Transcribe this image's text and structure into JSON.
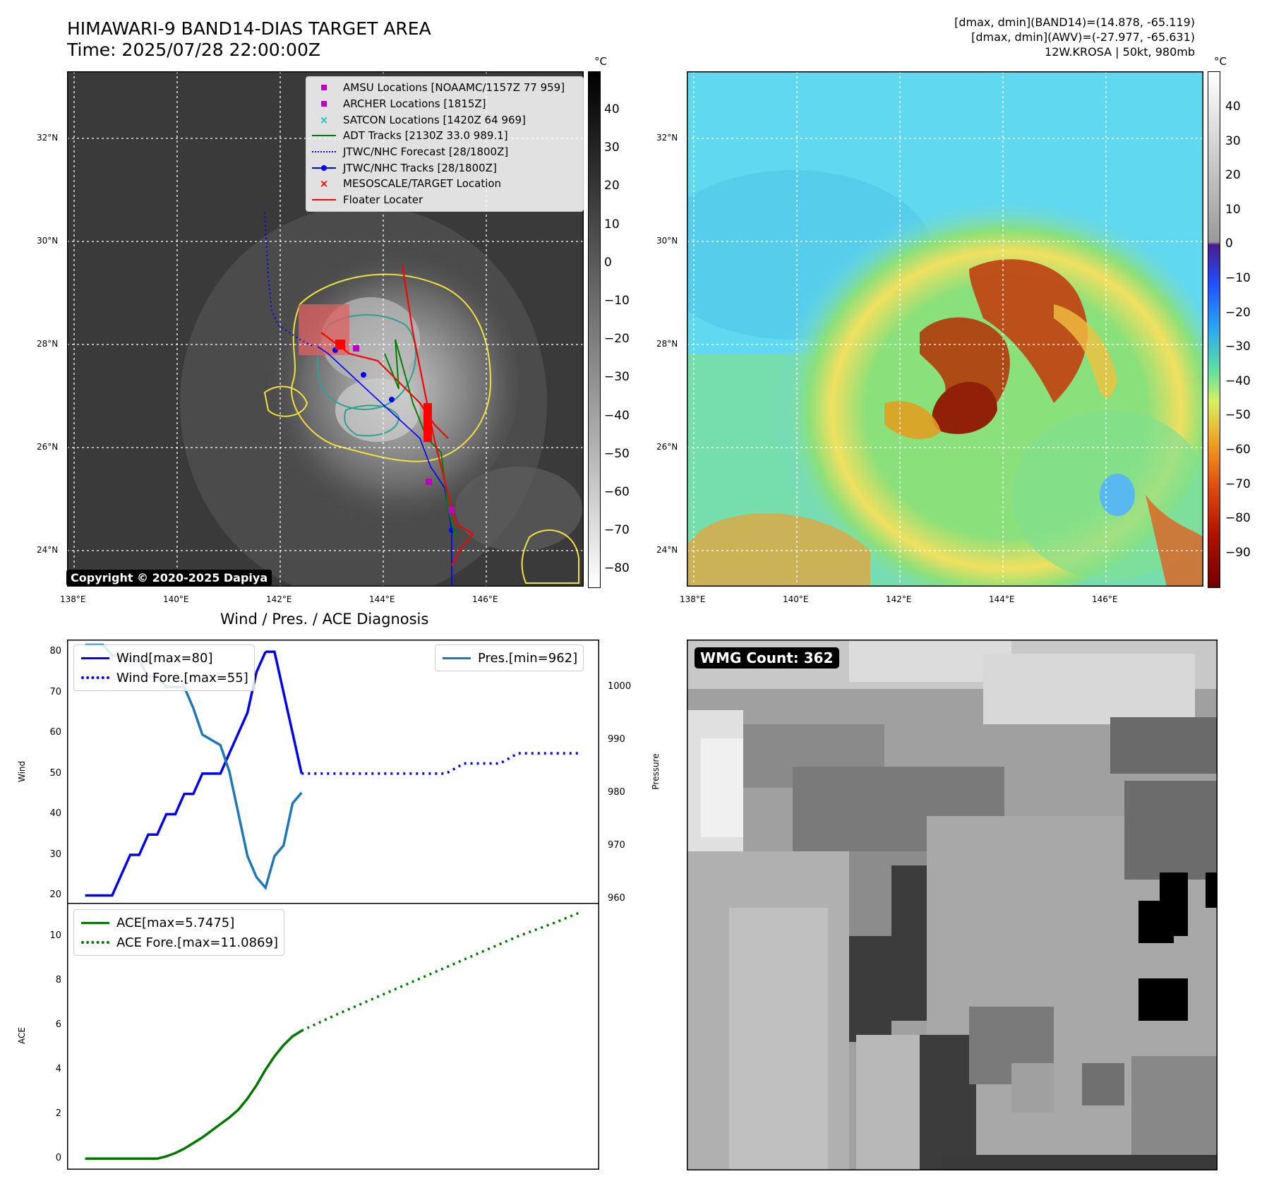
{
  "header": {
    "title_line1": "HIMAWARI-9 BAND14-DIAS TARGET AREA",
    "title_line2": "Time: 2025/07/28 22:00:00Z",
    "info_line1": "[dmax, dmin](BAND14)=(14.878, -65.119)",
    "info_line2": "[dmax, dmin](AWV)=(-27.977, -65.631)",
    "info_line3": "12W.KROSA | 50kt, 980mb"
  },
  "map_axes": {
    "lat_labels": [
      "32°N",
      "30°N",
      "28°N",
      "26°N",
      "24°N"
    ],
    "lon_labels": [
      "138°E",
      "140°E",
      "142°E",
      "144°E",
      "146°E"
    ]
  },
  "colorbar_ir": {
    "unit": "°C",
    "ticks": [
      "40",
      "30",
      "20",
      "10",
      "0",
      "−10",
      "−20",
      "−30",
      "−40",
      "−50",
      "−60",
      "−70",
      "−80"
    ]
  },
  "colorbar_wv": {
    "unit": "°C",
    "ticks": [
      "40",
      "30",
      "20",
      "10",
      "0",
      "−10",
      "−20",
      "−30",
      "−40",
      "−50",
      "−60",
      "−70",
      "−80",
      "−90"
    ]
  },
  "legend_map": {
    "items": [
      {
        "label": "AMSU Locations [NOAAMC/1157Z 77 959]",
        "color": "#c000c0",
        "symbol": "square"
      },
      {
        "label": "ARCHER Locations [1815Z]",
        "color": "#c000c0",
        "symbol": "square"
      },
      {
        "label": "SATCON Locations [1420Z 64 969]",
        "color": "#20c0c0",
        "symbol": "x"
      },
      {
        "label": "ADT Tracks [2130Z 33.0 989.1]",
        "color": "#008000",
        "symbol": "line"
      },
      {
        "label": "JTWC/NHC Forecast [28/1800Z]",
        "color": "#0000ff",
        "symbol": "dotted"
      },
      {
        "label": "JTWC/NHC Tracks [28/1800Z]",
        "color": "#0000ff",
        "symbol": "line-dot"
      },
      {
        "label": "MESOSCALE/TARGET Location",
        "color": "#ff0000",
        "symbol": "x"
      },
      {
        "label": "Floater Locater",
        "color": "#ff0000",
        "symbol": "line"
      }
    ]
  },
  "copyright": "Copyright © 2020-2025 Dapiya",
  "wmg_label": "WMG Count: 362",
  "chart_data": [
    {
      "type": "line",
      "title": "Wind / Pres. / ACE Diagnosis",
      "ylabel": "Wind",
      "ylabel_right": "Pressure",
      "ylim": [
        18,
        83
      ],
      "ylim_right": [
        959,
        1009
      ],
      "yticks": [
        "80",
        "70",
        "60",
        "50",
        "40",
        "30",
        "20"
      ],
      "yticks_right": [
        "1000",
        "990",
        "980",
        "970",
        "960"
      ],
      "legend_left": [
        "Wind[max=80]",
        "Wind Fore.[max=55]"
      ],
      "legend_right": [
        "Pres.[min=962]"
      ],
      "series": [
        {
          "name": "Wind[max=80]",
          "color": "#0000ee",
          "style": "solid",
          "x": [
            0,
            1,
            2,
            3,
            4,
            5,
            6,
            7,
            8,
            9,
            10,
            11,
            12,
            13,
            14,
            15,
            16,
            17,
            18,
            19,
            20,
            21,
            22,
            23,
            24,
            25,
            26,
            27,
            28,
            29,
            30,
            31,
            32,
            33,
            34,
            35,
            36,
            37,
            38,
            39,
            40
          ],
          "values": [
            20,
            20,
            20,
            20,
            20,
            20,
            20,
            22.5,
            25,
            27.5,
            30,
            30,
            30,
            32.5,
            35,
            35,
            35,
            37.5,
            40,
            40,
            40,
            42.5,
            45,
            45,
            45,
            47.5,
            50,
            50,
            50,
            50,
            50,
            52.5,
            55,
            57.5,
            60,
            62.5,
            65,
            70,
            75,
            77.5,
            80
          ]
        },
        {
          "name": "Wind[max=80] (cont.)",
          "color": "#0000ee",
          "style": "solid",
          "x": [
            40,
            41,
            42,
            43,
            44,
            45,
            46,
            47,
            48
          ],
          "values": [
            80,
            80,
            80,
            75,
            70,
            65,
            60,
            55,
            50
          ]
        },
        {
          "name": "Wind Fore.[max=55]",
          "color": "#0000ee",
          "style": "dotted",
          "x": [
            48,
            56,
            64,
            72,
            80,
            84,
            88,
            92,
            96,
            104,
            110
          ],
          "values": [
            50,
            50,
            50,
            50,
            50,
            52.5,
            52.5,
            52.5,
            55,
            55,
            55
          ]
        },
        {
          "name": "Pres.[min=962]",
          "color": "#1f77b4",
          "style": "solid",
          "axis": "right",
          "x": [
            0,
            2,
            4,
            6,
            8,
            10,
            12,
            14,
            16,
            18,
            20,
            22,
            24,
            26,
            28,
            30,
            32,
            34,
            36,
            38,
            40,
            42,
            44,
            46,
            48
          ],
          "values": [
            1008,
            1008,
            1008,
            1006,
            1006,
            1005,
            1005,
            1002,
            1002,
            1000,
            1000,
            1000,
            996,
            991,
            990,
            989,
            984,
            976,
            968,
            964,
            962,
            968,
            970,
            978,
            980
          ]
        }
      ]
    },
    {
      "type": "line",
      "ylabel": "ACE",
      "ylim": [
        -0.5,
        11.5
      ],
      "yticks": [
        "10",
        "8",
        "6",
        "4",
        "2",
        "0"
      ],
      "legend": [
        "ACE[max=5.7475]",
        "ACE Fore.[max=11.0869]"
      ],
      "series": [
        {
          "name": "ACE[max=5.7475]",
          "color": "#007700",
          "style": "solid",
          "x": [
            0,
            4,
            8,
            12,
            16,
            18,
            20,
            22,
            24,
            26,
            28,
            30,
            32,
            34,
            36,
            38,
            40,
            42,
            44,
            46,
            48
          ],
          "values": [
            0,
            0,
            0,
            0,
            0,
            0.1,
            0.25,
            0.45,
            0.7,
            0.95,
            1.25,
            1.55,
            1.85,
            2.2,
            2.7,
            3.3,
            4.0,
            4.6,
            5.1,
            5.5,
            5.75
          ]
        },
        {
          "name": "ACE Fore.[max=11.0869]",
          "color": "#007700",
          "style": "dotted",
          "x": [
            48,
            56,
            64,
            72,
            80,
            88,
            96,
            104,
            110
          ],
          "values": [
            5.75,
            6.5,
            7.2,
            7.9,
            8.6,
            9.3,
            10.0,
            10.6,
            11.09
          ]
        }
      ]
    }
  ]
}
